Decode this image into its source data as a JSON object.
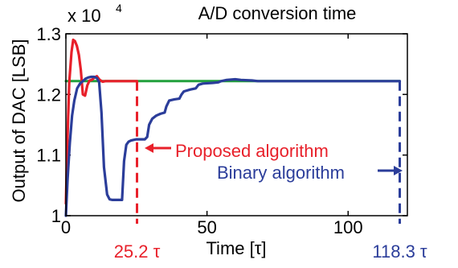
{
  "chart_data": {
    "type": "line",
    "title": "A/D conversion time",
    "xlabel": "Time [τ]",
    "ylabel": "Output of DAC [LSB]",
    "y_exponent_label": "x 10",
    "y_exponent_power": "4",
    "xlim": [
      0,
      121
    ],
    "ylim": [
      1.0,
      1.3
    ],
    "x_ticks": [
      0,
      50,
      100
    ],
    "x_tick_labels": [
      "0",
      "50",
      "100"
    ],
    "y_ticks": [
      1.0,
      1.1,
      1.2,
      1.3
    ],
    "y_tick_labels": [
      "1",
      "1.1",
      "1.2",
      "1.3"
    ],
    "grid": false,
    "legend": "none",
    "series": [
      {
        "color": "#22a03c",
        "x": [
          0,
          118.3
        ],
        "y": [
          1.222,
          1.222
        ]
      },
      {
        "color": "#e8202a",
        "x": [
          0,
          0.5,
          1.2,
          2,
          2.6,
          3.2,
          3.9,
          4.6,
          5.3,
          6.0,
          6.8,
          7.6,
          8.4,
          9.2,
          10.1,
          11.0,
          12.0,
          13.0,
          14.0,
          15.0,
          25.2
        ],
        "y": [
          1.02,
          1.12,
          1.22,
          1.27,
          1.29,
          1.288,
          1.28,
          1.265,
          1.24,
          1.2,
          1.198,
          1.215,
          1.223,
          1.224,
          1.228,
          1.23,
          1.224,
          1.221,
          1.222,
          1.222,
          1.222
        ]
      },
      {
        "color": "#2b3d9a",
        "x": [
          0,
          0.6,
          1.4,
          2.2,
          3.0,
          4.0,
          5.0,
          6.0,
          7.0,
          8.0,
          9.0,
          10.0,
          11.0,
          11.8,
          12.6,
          13.5,
          14.6,
          15.5,
          16.5,
          17.5,
          18.4,
          19.3,
          19.9,
          20.6,
          21.4,
          22.2,
          23.1,
          24.0,
          25.0,
          26.0,
          27.0,
          28.0,
          28.8,
          29.5,
          30.6,
          32.0,
          33.5,
          35.0,
          35.6,
          36.6,
          38.5,
          40.2,
          41.0,
          41.8,
          44.0,
          46.0,
          47.0,
          48.5,
          52.0,
          54.0,
          55.0,
          57.0,
          60.0,
          62.0,
          66.0,
          68.0,
          70.0,
          80.0,
          90.0,
          100.0,
          110.0,
          118.3
        ],
        "y": [
          1.0,
          1.06,
          1.12,
          1.165,
          1.19,
          1.21,
          1.218,
          1.222,
          1.226,
          1.228,
          1.229,
          1.229,
          1.227,
          1.22,
          1.17,
          1.08,
          1.035,
          1.027,
          1.026,
          1.026,
          1.026,
          1.026,
          1.026,
          1.09,
          1.117,
          1.122,
          1.124,
          1.125,
          1.126,
          1.126,
          1.126,
          1.126,
          1.13,
          1.15,
          1.16,
          1.165,
          1.168,
          1.17,
          1.18,
          1.19,
          1.192,
          1.193,
          1.2,
          1.205,
          1.208,
          1.21,
          1.216,
          1.218,
          1.219,
          1.22,
          1.222,
          1.224,
          1.225,
          1.224,
          1.223,
          1.222,
          1.222,
          1.222,
          1.222,
          1.222,
          1.222,
          1.222
        ]
      }
    ],
    "markers": [
      {
        "x": 25.2,
        "label": "25.2 τ",
        "color": "#e8202a"
      },
      {
        "x": 118.3,
        "label": "118.3 τ",
        "color": "#2b3d9a"
      }
    ],
    "annotations": [
      {
        "text": "Proposed algorithm",
        "color": "#e8202a",
        "arrow": "left"
      },
      {
        "text": "Binary algorithm",
        "color": "#2b3d9a",
        "arrow": "right"
      }
    ]
  }
}
